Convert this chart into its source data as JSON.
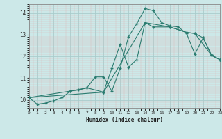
{
  "xlabel": "Humidex (Indice chaleur)",
  "xlim": [
    0,
    23
  ],
  "ylim": [
    9.6,
    14.4
  ],
  "yticks": [
    10,
    11,
    12,
    13,
    14
  ],
  "xticks": [
    0,
    1,
    2,
    3,
    4,
    5,
    6,
    7,
    8,
    9,
    10,
    11,
    12,
    13,
    14,
    15,
    16,
    17,
    18,
    19,
    20,
    21,
    22,
    23
  ],
  "bg_color": "#cce8e8",
  "grid_color": "#b8d8d8",
  "line_color": "#2a7b6f",
  "line1_x": [
    0,
    1,
    2,
    3,
    4,
    5,
    6,
    7,
    8,
    9,
    10,
    11,
    12,
    13,
    14,
    15,
    16,
    17,
    18,
    19,
    20,
    21,
    22,
    23
  ],
  "line1_y": [
    10.1,
    9.8,
    9.85,
    9.95,
    10.1,
    10.4,
    10.45,
    10.55,
    11.05,
    11.05,
    10.4,
    11.45,
    12.9,
    13.5,
    14.2,
    14.1,
    13.55,
    13.4,
    13.35,
    13.05,
    12.1,
    12.85,
    12.05,
    11.85
  ],
  "line2_x": [
    0,
    9,
    10,
    11,
    12,
    13,
    14,
    15,
    17,
    19,
    20,
    21,
    22,
    23
  ],
  "line2_y": [
    10.1,
    10.35,
    11.45,
    12.55,
    11.5,
    11.85,
    13.55,
    13.35,
    13.35,
    13.1,
    13.05,
    12.85,
    12.05,
    11.85
  ],
  "line3_x": [
    0,
    5,
    7,
    9,
    14,
    17,
    19,
    20,
    22,
    23
  ],
  "line3_y": [
    10.1,
    10.4,
    10.55,
    10.35,
    13.55,
    13.35,
    13.1,
    13.05,
    12.05,
    11.85
  ]
}
